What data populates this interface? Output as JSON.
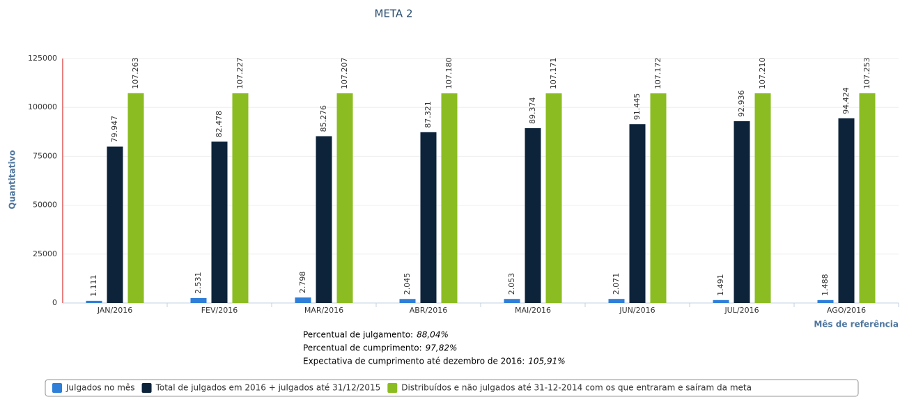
{
  "chart_data": {
    "type": "bar",
    "title": "META 2",
    "y_label": "Quantitativo",
    "x_label": "Mês de referência",
    "categories": [
      "JAN/2016",
      "FEV/2016",
      "MAR/2016",
      "ABR/2016",
      "MAI/2016",
      "JUN/2016",
      "JUL/2016",
      "AGO/2016"
    ],
    "series": [
      {
        "name": "Julgados no mês",
        "color": "#2f7ed8",
        "values": [
          1111,
          2531,
          2798,
          2045,
          2053,
          2071,
          1491,
          1488
        ],
        "value_labels": [
          "1.111",
          "2.531",
          "2.798",
          "2.045",
          "2.053",
          "2.071",
          "1.491",
          "1.488"
        ]
      },
      {
        "name": "Total de julgados em 2016 + julgados até 31/12/2015",
        "color": "#0d233a",
        "values": [
          79947,
          82478,
          85276,
          87321,
          89374,
          91445,
          92936,
          94424
        ],
        "value_labels": [
          "79.947",
          "82.478",
          "85.276",
          "87.321",
          "89.374",
          "91.445",
          "92.936",
          "94.424"
        ]
      },
      {
        "name": "Distribuídos e não julgados até 31-12-2014 com os que entraram e saíram da meta",
        "color": "#8bbc21",
        "values": [
          107263,
          107227,
          107207,
          107180,
          107171,
          107172,
          107210,
          107253
        ],
        "value_labels": [
          "107.263",
          "107.227",
          "107.207",
          "107.180",
          "107.171",
          "107.172",
          "107.210",
          "107.253"
        ]
      }
    ],
    "ylim": [
      0,
      125000
    ],
    "yticks": [
      0,
      25000,
      50000,
      75000,
      100000,
      125000
    ],
    "grid": true,
    "annotations": [
      {
        "text": "Percentual de julgamento:",
        "value": "88,04%"
      },
      {
        "text": "Percentual de cumprimento:",
        "value": "97,82%"
      },
      {
        "text": "Expectativa de cumprimento até dezembro de 2016:",
        "value": "105,91%"
      }
    ]
  }
}
